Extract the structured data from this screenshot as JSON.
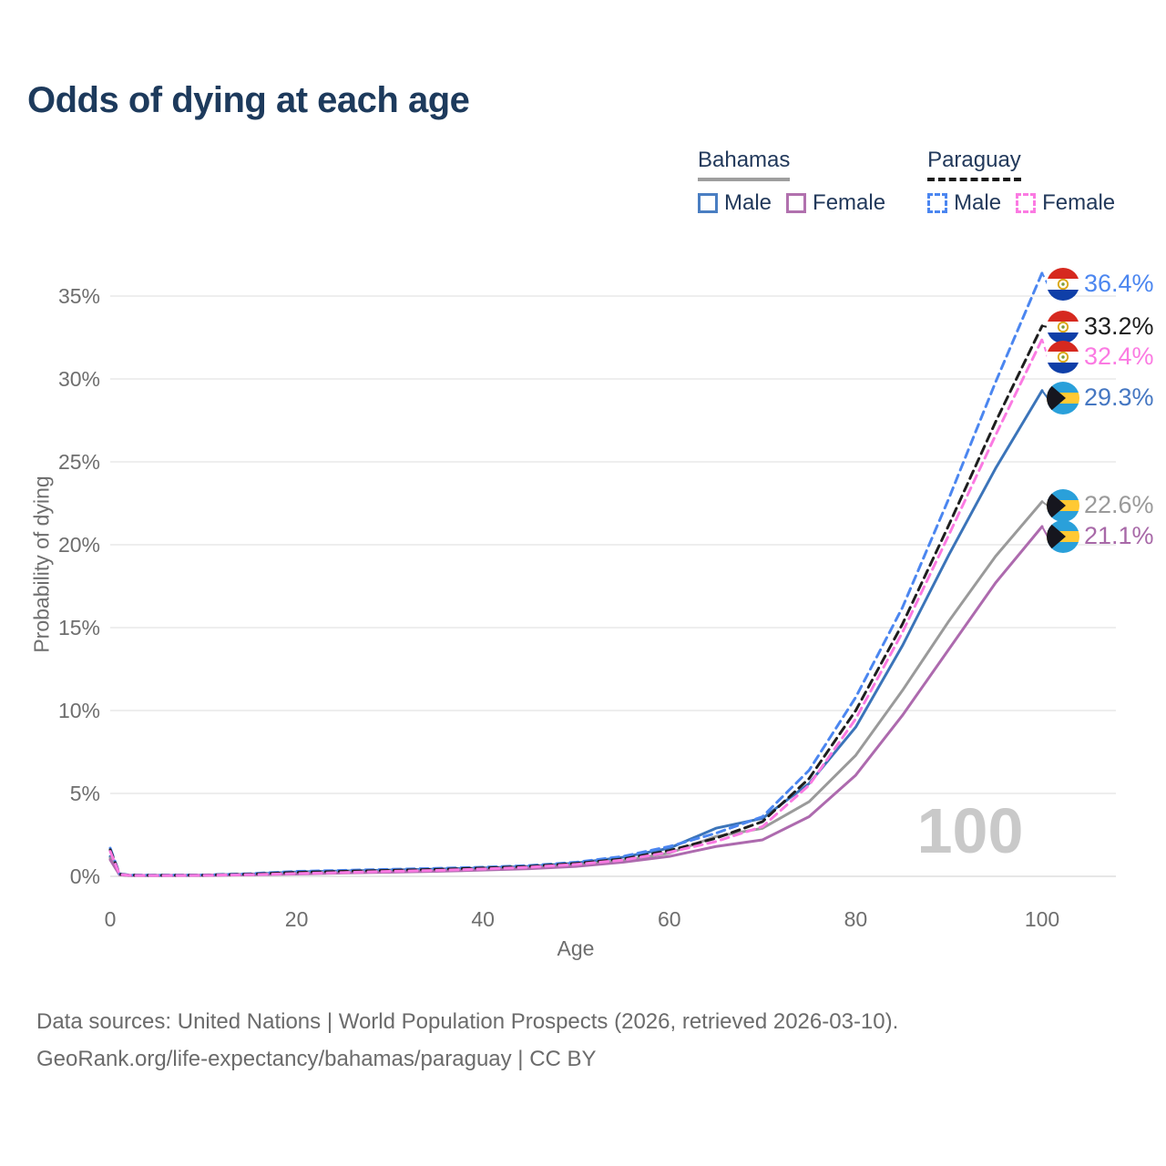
{
  "title": "Odds of dying at each age",
  "watermark": "100",
  "y_axis_title": "Probability of dying",
  "x_axis_title": "Age",
  "source_line1": "Data sources: United Nations | World Population Prospects (2026, retrieved 2026-03-10).",
  "source_line2": "GeoRank.org/life-expectancy/bahamas/paraguay | CC BY",
  "legend": {
    "groups": [
      {
        "country": "Bahamas",
        "style": "solid",
        "underline_color": "#9e9e9e",
        "items": [
          {
            "label": "Male",
            "color": "#4a7ec2"
          },
          {
            "label": "Female",
            "color": "#b171ae"
          }
        ]
      },
      {
        "country": "Paraguay",
        "style": "dashed",
        "underline_color": "#1b1b1b",
        "items": [
          {
            "label": "Male",
            "color": "#4b86f0"
          },
          {
            "label": "Female",
            "color": "#fb7ae2"
          }
        ]
      }
    ]
  },
  "chart_data": {
    "type": "line",
    "title": "Odds of dying at each age",
    "xlabel": "Age",
    "ylabel": "Probability of dying",
    "xlim": [
      0,
      100
    ],
    "ylim": [
      0,
      37
    ],
    "xticks": [
      0,
      20,
      40,
      60,
      80,
      100
    ],
    "yticks": [
      0,
      5,
      10,
      15,
      20,
      25,
      30,
      35
    ],
    "ytick_suffix": "%",
    "grid": true,
    "legend_position": "top-right",
    "hover_age_readout": "100",
    "x": [
      0,
      1,
      2,
      5,
      10,
      15,
      20,
      25,
      30,
      35,
      40,
      45,
      50,
      55,
      60,
      65,
      70,
      75,
      80,
      85,
      90,
      95,
      100
    ],
    "series": [
      {
        "id": "paraguay-male",
        "country": "Paraguay",
        "label": "Male",
        "line_color": "#4b86f0",
        "dashed": true,
        "flag": "paraguay",
        "end_value": 36.4,
        "end_label": "36.4%",
        "label_color": "#4b86f0",
        "values": [
          1.7,
          0.15,
          0.08,
          0.07,
          0.08,
          0.16,
          0.3,
          0.36,
          0.42,
          0.48,
          0.55,
          0.65,
          0.85,
          1.2,
          1.8,
          2.6,
          3.6,
          6.4,
          10.8,
          16.2,
          22.8,
          29.8,
          36.4
        ]
      },
      {
        "id": "paraguay-both",
        "country": "Paraguay",
        "label": "Paraguay",
        "line_color": "#1e1e1e",
        "dashed": true,
        "flag": "paraguay",
        "end_value": 33.2,
        "end_label": "33.2%",
        "label_color": "#1e1e1e",
        "values": [
          1.6,
          0.13,
          0.07,
          0.06,
          0.07,
          0.13,
          0.24,
          0.3,
          0.36,
          0.42,
          0.5,
          0.6,
          0.78,
          1.05,
          1.55,
          2.3,
          3.3,
          5.9,
          10.0,
          15.2,
          21.2,
          27.4,
          33.2
        ]
      },
      {
        "id": "paraguay-female",
        "country": "Paraguay",
        "label": "Female",
        "line_color": "#fb7ae2",
        "dashed": true,
        "flag": "paraguay",
        "end_value": 32.4,
        "end_label": "32.4%",
        "label_color": "#fb7ae2",
        "values": [
          1.5,
          0.12,
          0.06,
          0.05,
          0.06,
          0.1,
          0.17,
          0.23,
          0.3,
          0.36,
          0.44,
          0.55,
          0.72,
          0.98,
          1.45,
          2.1,
          3.0,
          5.5,
          9.5,
          14.7,
          20.6,
          26.6,
          32.4
        ]
      },
      {
        "id": "bahamas-male",
        "country": "Bahamas",
        "label": "Male",
        "line_color": "#3b74b9",
        "dashed": false,
        "flag": "bahamas",
        "end_value": 29.3,
        "end_label": "29.3%",
        "label_color": "#4577c2",
        "values": [
          1.2,
          0.11,
          0.06,
          0.06,
          0.07,
          0.13,
          0.26,
          0.32,
          0.38,
          0.43,
          0.5,
          0.6,
          0.8,
          1.15,
          1.7,
          2.9,
          3.5,
          5.6,
          9.0,
          13.9,
          19.4,
          24.6,
          29.3
        ]
      },
      {
        "id": "bahamas-both",
        "country": "Bahamas",
        "label": "Bahamas",
        "line_color": "#9a9a9a",
        "dashed": false,
        "flag": "bahamas",
        "end_value": 22.6,
        "end_label": "22.6%",
        "label_color": "#9a9a9a",
        "values": [
          1.1,
          0.1,
          0.05,
          0.05,
          0.06,
          0.11,
          0.2,
          0.26,
          0.31,
          0.36,
          0.43,
          0.52,
          0.68,
          0.95,
          1.4,
          2.4,
          2.9,
          4.5,
          7.3,
          11.2,
          15.4,
          19.3,
          22.6
        ]
      },
      {
        "id": "bahamas-female",
        "country": "Bahamas",
        "label": "Female",
        "line_color": "#ad6aae",
        "dashed": false,
        "flag": "bahamas",
        "end_value": 21.1,
        "end_label": "21.1%",
        "label_color": "#a869a8",
        "values": [
          1.0,
          0.09,
          0.05,
          0.04,
          0.05,
          0.09,
          0.14,
          0.2,
          0.25,
          0.3,
          0.38,
          0.46,
          0.6,
          0.85,
          1.2,
          1.8,
          2.2,
          3.6,
          6.1,
          9.7,
          13.7,
          17.7,
          21.1
        ]
      }
    ]
  }
}
